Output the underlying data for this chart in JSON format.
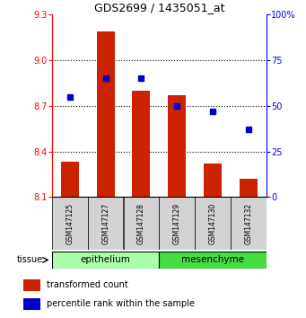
{
  "title": "GDS2699 / 1435051_at",
  "samples": [
    "GSM147125",
    "GSM147127",
    "GSM147128",
    "GSM147129",
    "GSM147130",
    "GSM147132"
  ],
  "red_values": [
    8.33,
    9.19,
    8.8,
    8.77,
    8.32,
    8.22
  ],
  "blue_values": [
    55,
    65,
    65,
    50,
    47,
    37
  ],
  "red_base": 8.1,
  "ylim_left": [
    8.1,
    9.3
  ],
  "ylim_right": [
    0,
    100
  ],
  "yticks_left": [
    8.1,
    8.4,
    8.7,
    9.0,
    9.3
  ],
  "yticks_right": [
    0,
    25,
    50,
    75,
    100
  ],
  "ytick_labels_right": [
    "0",
    "25",
    "50",
    "75",
    "100%"
  ],
  "groups": [
    {
      "label": "epithelium",
      "indices": [
        0,
        1,
        2
      ],
      "color": "#AAFFAA"
    },
    {
      "label": "mesenchyme",
      "indices": [
        3,
        4,
        5
      ],
      "color": "#44DD44"
    }
  ],
  "bar_color": "#CC2200",
  "dot_color": "#0000CC",
  "bar_width": 0.5,
  "sample_box_color": "#D3D3D3",
  "tissue_label": "tissue"
}
